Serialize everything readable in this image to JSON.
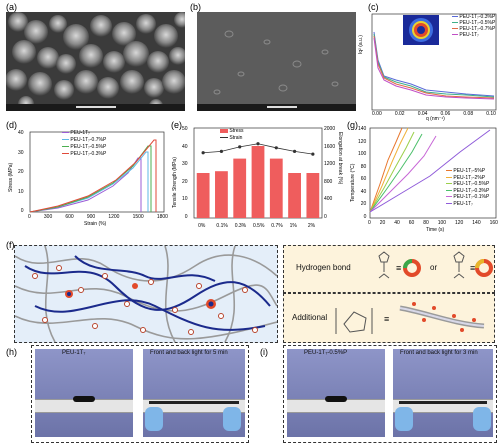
{
  "labels": {
    "a": "(a)",
    "b": "(b)",
    "c": "(c)",
    "d": "(d)",
    "e": "(e)",
    "f": "(f)",
    "g": "(g)",
    "h": "(h)",
    "i": "(i)"
  },
  "panel_c": {
    "ylabel": "Iq² (a.u.)",
    "xlabel": "q (nm⁻¹)",
    "xticks": [
      "0.00",
      "0.02",
      "0.04",
      "0.06",
      "0.08",
      "0.10"
    ],
    "legend": [
      "PEU-1T₇-0.3%P",
      "PEU-1T₇-0.5%P",
      "PEU-1T₇-0.7%P",
      "PEU-1T₇"
    ],
    "colors": [
      "#5a6bd8",
      "#3fb08a",
      "#e06b48",
      "#c14fc6"
    ]
  },
  "panel_d": {
    "ylabel": "Stress (MPa)",
    "xlabel": "Strain (%)",
    "yticks": [
      "0",
      "10",
      "20",
      "30",
      "40"
    ],
    "xticks": [
      "0",
      "300",
      "600",
      "900",
      "1200",
      "1500",
      "1800"
    ],
    "legend": [
      "PEU-1T₇",
      "PEU-1T₇-0.7%P",
      "PEU-1T₇-0.5%P",
      "PEU-1T₇-0.3%P"
    ],
    "colors": [
      "#9b5cd6",
      "#5fb9e6",
      "#4caf50",
      "#e04a3a"
    ]
  },
  "chart_data": {
    "type": "bar",
    "title": "",
    "categories": [
      "0%",
      "0.1%",
      "0.3%",
      "0.5%",
      "0.7%",
      "1%",
      "2%"
    ],
    "series": [
      {
        "name": "Stress",
        "values": [
          25,
          26,
          33,
          40,
          33,
          25,
          25
        ]
      },
      {
        "name": "Strain",
        "values": [
          1450,
          1480,
          1580,
          1650,
          1560,
          1480,
          1420
        ]
      }
    ],
    "ylabel": "Tensile Strength (MPa)",
    "ylabel_right": "Elongation at break (%)",
    "yticks": [
      "0",
      "10",
      "20",
      "30",
      "40",
      "50"
    ],
    "yticks_right": [
      "0",
      "400",
      "800",
      "1200",
      "1600",
      "2000"
    ],
    "ylim": [
      0,
      50
    ],
    "ylim_right": [
      0,
      2000
    ],
    "bar_color": "#ef5d5d",
    "line_color": "#333333"
  },
  "panel_g": {
    "ylabel": "Temperature (°C)",
    "xlabel": "Time (s)",
    "yticks": [
      "0",
      "20",
      "40",
      "60",
      "80",
      "100",
      "120",
      "140"
    ],
    "xticks": [
      "0",
      "20",
      "40",
      "60",
      "80",
      "100",
      "120",
      "140",
      "160"
    ],
    "legend": [
      "PEU-1T₇-5%P",
      "PEU-1T₇-2%P",
      "PEU-1T₇-0.5%P",
      "PEU-1T₇-0.3%P",
      "PEU-1T₇-0.1%P",
      "PEU-1T₇"
    ],
    "colors": [
      "#e8782f",
      "#f0b13a",
      "#9bcf4a",
      "#4bbf6a",
      "#c766d6",
      "#8f5bd9"
    ]
  },
  "panel_f": {
    "hydrogen_bond": "Hydrogen bond",
    "or": "or",
    "additional": "Additional"
  },
  "panel_h": {
    "sample": "PEU-1T₇",
    "caption": "Front and back light for 5 min"
  },
  "panel_i": {
    "sample": "PEU-1T₇-0.5%P",
    "caption": "Front and back light for 3 min"
  }
}
